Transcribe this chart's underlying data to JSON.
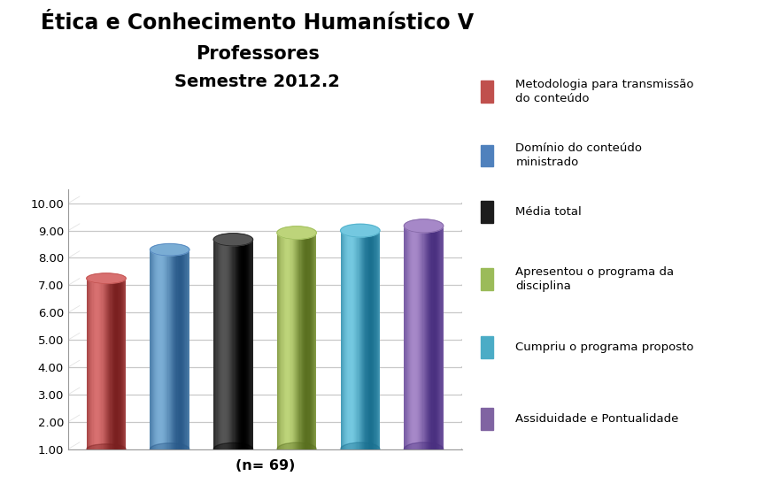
{
  "title_line1": "Ética e Conhecimento Humanístico V",
  "title_line2": "Professores",
  "title_line3": "Semestre 2012.2",
  "xlabel": "(n= 69)",
  "ylim_min": 1.0,
  "ylim_max": 10.0,
  "yticks": [
    1.0,
    2.0,
    3.0,
    4.0,
    5.0,
    6.0,
    7.0,
    8.0,
    9.0,
    10.0
  ],
  "bar_values": [
    7.25,
    8.3,
    8.67,
    8.92,
    9.0,
    9.17
  ],
  "bar_colors": [
    "#c0504d",
    "#4f81bd",
    "#1c1c1c",
    "#9bbb59",
    "#4bacc6",
    "#8064a2"
  ],
  "bar_colors_light": [
    "#d87070",
    "#7aadd4",
    "#555555",
    "#bdd47a",
    "#74c8e0",
    "#a688c8"
  ],
  "bar_colors_dark": [
    "#7a2020",
    "#2a5a8a",
    "#000000",
    "#5a7020",
    "#1a7090",
    "#4a3080"
  ],
  "legend_labels": [
    "Metodologia para transmissão\ndo conteúdo",
    "Domínio do conteúdo\nministrado",
    "Média total",
    "Apresentou o programa da\ndisciplina",
    "Cumpriu o programa proposto",
    "Assiduidade e Pontualidade"
  ],
  "bg_color": "#ffffff",
  "grid_color": "#c8c8c8",
  "title_fontsize": 17,
  "label_fontsize": 11
}
